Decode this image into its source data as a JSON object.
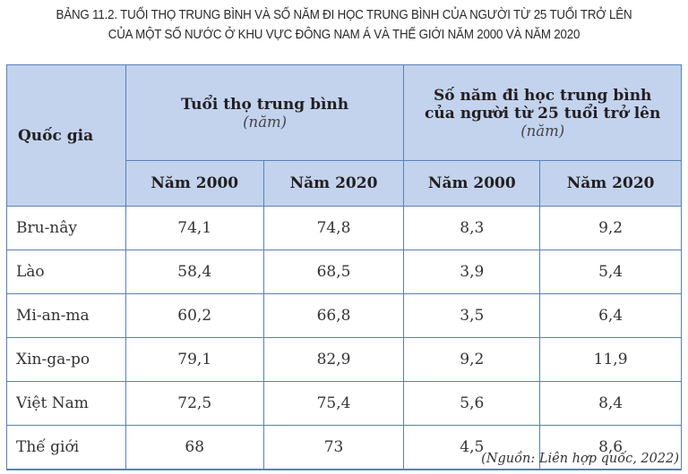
{
  "caption": {
    "line1": "BẢNG 11.2. TUỔI THỌ TRUNG BÌNH VÀ SỐ NĂM ĐI HỌC TRUNG BÌNH CỦA NGƯỜI TỪ 25 TUỔI TRỞ LÊN",
    "line2": "CỦA MỘT SỐ NƯỚC Ở KHU VỰC ĐÔNG NAM Á VÀ THẾ GIỚI NĂM 2000 VÀ NĂM 2020"
  },
  "table": {
    "country_header": "Quốc gia",
    "group1": {
      "title": "Tuổi thọ trung bình",
      "unit": "(năm)"
    },
    "group2": {
      "title_line1": "Số năm đi học trung bình",
      "title_line2": "của người từ 25 tuổi trở lên",
      "unit": "(năm)"
    },
    "years": [
      "Năm 2000",
      "Năm 2020",
      "Năm 2000",
      "Năm 2020"
    ],
    "rows": [
      {
        "country": "Bru-nây",
        "values": [
          "74,1",
          "74,8",
          "8,3",
          "9,2"
        ]
      },
      {
        "country": "Lào",
        "values": [
          "58,4",
          "68,5",
          "3,9",
          "5,4"
        ]
      },
      {
        "country": "Mi-an-ma",
        "values": [
          "60,2",
          "66,8",
          "3,5",
          "6,4"
        ]
      },
      {
        "country": "Xin-ga-po",
        "values": [
          "79,1",
          "82,9",
          "9,2",
          "11,9"
        ]
      },
      {
        "country": "Việt Nam",
        "values": [
          "72,5",
          "75,4",
          "5,6",
          "8,4"
        ]
      },
      {
        "country": "Thế giới",
        "values": [
          "68",
          "73",
          "4,5",
          "8,6"
        ]
      }
    ]
  },
  "source": "(Nguồn: Liên hợp quốc, 2022)",
  "colors": {
    "header_bg": "#c3d3ee",
    "border": "#5b7fb7"
  }
}
